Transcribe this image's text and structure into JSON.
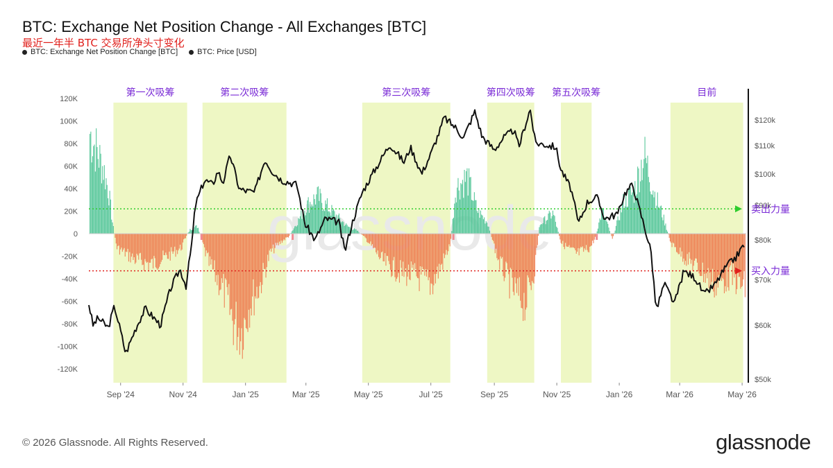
{
  "header": {
    "title": "BTC: Exchange Net Position Change - All Exchanges [BTC]",
    "subtitle": "最近一年半 BTC 交易所净头寸变化",
    "legend": [
      {
        "label": "BTC: Exchange Net Position Change [BTC]",
        "color": "#222222"
      },
      {
        "label": "BTC: Price [USD]",
        "color": "#111111"
      }
    ]
  },
  "footer": {
    "copyright": "© 2026 Glassnode. All Rights Reserved.",
    "brand": "glassnode",
    "watermark": "glassnode"
  },
  "colors": {
    "positive": "#4fc495",
    "negative": "#ee7c50",
    "negative_light": "#f08a92",
    "price": "#111111",
    "zone": "#eef7c4",
    "zone_label": "#7a2bd6",
    "sell_line": "#2ecc2e",
    "buy_line": "#e0201c",
    "annotation_text": "#7a2bd6"
  },
  "chart_data": {
    "type": "bar",
    "x_ticks": [
      "Sep '24",
      "Nov '24",
      "Jan '25",
      "Mar '25",
      "May '25",
      "Jul '25",
      "Sep '25",
      "Nov '25",
      "Jan '26",
      "Mar '26",
      "May '26"
    ],
    "x_range": [
      "2024-08-01",
      "2026-05-05"
    ],
    "y_left": {
      "ticks": [
        "120K",
        "100K",
        "80K",
        "60K",
        "40K",
        "20K",
        "0",
        "-20K",
        "-40K",
        "-60K",
        "-80K",
        "-100K",
        "-120K"
      ],
      "ylim": [
        -130000,
        127000
      ]
    },
    "y_right": {
      "ticks": [
        "$120k",
        "$110k",
        "$100k",
        "$90k",
        "$80k",
        "$70k",
        "$60k",
        "$50k"
      ],
      "ylim": [
        50000,
        127000
      ],
      "scale": "log"
    },
    "zones": [
      {
        "label": "第一次吸筹",
        "start": "2024-08-25",
        "end": "2024-11-05"
      },
      {
        "label": "第二次吸筹",
        "start": "2024-11-20",
        "end": "2025-02-10"
      },
      {
        "label": "第三次吸筹",
        "start": "2025-04-25",
        "end": "2025-07-20"
      },
      {
        "label": "第四次吸筹",
        "start": "2025-08-25",
        "end": "2025-10-10"
      },
      {
        "label": "第五次吸筹",
        "start": "2025-11-05",
        "end": "2025-12-05"
      },
      {
        "label": "目前",
        "start": "2026-02-20",
        "end": "2026-05-02"
      }
    ],
    "reference_lines": [
      {
        "label": "卖出力量",
        "value": 22000,
        "color": "#2ecc2e"
      },
      {
        "label": "买入力量",
        "value": -33000,
        "color": "#e0201c"
      }
    ],
    "series": [
      {
        "name": "BTC: Exchange Net Position Change [BTC]",
        "keyframes": [
          [
            "2024-08-01",
            110000
          ],
          [
            "2024-08-08",
            90000
          ],
          [
            "2024-08-15",
            70000
          ],
          [
            "2024-08-20",
            45000
          ],
          [
            "2024-08-24",
            10000
          ],
          [
            "2024-08-28",
            -15000
          ],
          [
            "2024-09-15",
            -28000
          ],
          [
            "2024-10-01",
            -33000
          ],
          [
            "2024-10-15",
            -25000
          ],
          [
            "2024-10-30",
            -15000
          ],
          [
            "2024-11-04",
            -2000
          ],
          [
            "2024-11-08",
            5000
          ],
          [
            "2024-11-15",
            8000
          ],
          [
            "2024-11-25",
            -30000
          ],
          [
            "2024-12-10",
            -60000
          ],
          [
            "2024-12-20",
            -95000
          ],
          [
            "2024-12-28",
            -105000
          ],
          [
            "2025-01-05",
            -75000
          ],
          [
            "2025-01-15",
            -55000
          ],
          [
            "2025-01-25",
            -20000
          ],
          [
            "2025-02-05",
            -8000
          ],
          [
            "2025-02-12",
            -3000
          ],
          [
            "2025-02-20",
            12000
          ],
          [
            "2025-03-01",
            30000
          ],
          [
            "2025-03-12",
            40000
          ],
          [
            "2025-03-25",
            25000
          ],
          [
            "2025-04-10",
            8000
          ],
          [
            "2025-04-20",
            3000
          ],
          [
            "2025-04-28",
            -5000
          ],
          [
            "2025-05-15",
            -30000
          ],
          [
            "2025-06-01",
            -42000
          ],
          [
            "2025-06-15",
            -45000
          ],
          [
            "2025-07-01",
            -55000
          ],
          [
            "2025-07-12",
            -32000
          ],
          [
            "2025-07-20",
            -10000
          ],
          [
            "2025-07-25",
            50000
          ],
          [
            "2025-08-05",
            60000
          ],
          [
            "2025-08-15",
            25000
          ],
          [
            "2025-08-25",
            12000
          ],
          [
            "2025-09-05",
            -30000
          ],
          [
            "2025-09-20",
            -62000
          ],
          [
            "2025-10-01",
            -75000
          ],
          [
            "2025-10-10",
            -38000
          ],
          [
            "2025-10-15",
            10000
          ],
          [
            "2025-10-28",
            22000
          ],
          [
            "2025-11-05",
            -10000
          ],
          [
            "2025-11-20",
            -22000
          ],
          [
            "2025-12-03",
            -15000
          ],
          [
            "2025-12-08",
            -5000
          ],
          [
            "2025-12-15",
            25000
          ],
          [
            "2025-12-25",
            -5000
          ],
          [
            "2026-01-05",
            35000
          ],
          [
            "2026-01-15",
            45000
          ],
          [
            "2026-01-25",
            85000
          ],
          [
            "2026-02-05",
            40000
          ],
          [
            "2026-02-12",
            20000
          ],
          [
            "2026-02-20",
            -10000
          ],
          [
            "2026-03-05",
            -25000
          ],
          [
            "2026-03-20",
            -38000
          ],
          [
            "2026-04-05",
            -55000
          ],
          [
            "2026-04-20",
            -45000
          ],
          [
            "2026-05-02",
            -58000
          ]
        ]
      },
      {
        "name": "BTC: Price [USD]",
        "keyframes": [
          [
            "2024-08-01",
            64500
          ],
          [
            "2024-08-05",
            60000
          ],
          [
            "2024-08-10",
            61500
          ],
          [
            "2024-08-20",
            59500
          ],
          [
            "2024-08-26",
            64000
          ],
          [
            "2024-09-06",
            54500
          ],
          [
            "2024-09-15",
            59000
          ],
          [
            "2024-09-25",
            63500
          ],
          [
            "2024-10-10",
            60000
          ],
          [
            "2024-10-20",
            68000
          ],
          [
            "2024-10-29",
            72500
          ],
          [
            "2024-11-04",
            68500
          ],
          [
            "2024-11-10",
            80000
          ],
          [
            "2024-11-13",
            90000
          ],
          [
            "2024-11-22",
            98000
          ],
          [
            "2024-11-30",
            96500
          ],
          [
            "2024-12-05",
            101000
          ],
          [
            "2024-12-10",
            97000
          ],
          [
            "2024-12-17",
            106500
          ],
          [
            "2024-12-26",
            95000
          ],
          [
            "2025-01-01",
            94500
          ],
          [
            "2025-01-10",
            94000
          ],
          [
            "2025-01-20",
            105000
          ],
          [
            "2025-01-27",
            101000
          ],
          [
            "2025-02-05",
            98000
          ],
          [
            "2025-02-20",
            96500
          ],
          [
            "2025-02-28",
            84500
          ],
          [
            "2025-03-10",
            80000
          ],
          [
            "2025-03-20",
            86000
          ],
          [
            "2025-04-02",
            85000
          ],
          [
            "2025-04-08",
            77000
          ],
          [
            "2025-04-15",
            84500
          ],
          [
            "2025-04-25",
            94000
          ],
          [
            "2025-05-10",
            103000
          ],
          [
            "2025-05-22",
            110500
          ],
          [
            "2025-06-05",
            104000
          ],
          [
            "2025-06-11",
            109500
          ],
          [
            "2025-06-22",
            100000
          ],
          [
            "2025-07-01",
            107000
          ],
          [
            "2025-07-10",
            116000
          ],
          [
            "2025-07-14",
            121000
          ],
          [
            "2025-07-25",
            117000
          ],
          [
            "2025-08-02",
            113000
          ],
          [
            "2025-08-13",
            123500
          ],
          [
            "2025-08-20",
            113500
          ],
          [
            "2025-09-01",
            108500
          ],
          [
            "2025-09-10",
            113000
          ],
          [
            "2025-09-20",
            116000
          ],
          [
            "2025-09-25",
            109500
          ],
          [
            "2025-10-06",
            124500
          ],
          [
            "2025-10-11",
            111000
          ],
          [
            "2025-10-20",
            110500
          ],
          [
            "2025-10-31",
            109500
          ],
          [
            "2025-11-05",
            101500
          ],
          [
            "2025-11-15",
            95000
          ],
          [
            "2025-11-22",
            84500
          ],
          [
            "2025-12-01",
            91000
          ],
          [
            "2025-12-10",
            92500
          ],
          [
            "2025-12-18",
            86000
          ],
          [
            "2025-12-31",
            87500
          ],
          [
            "2026-01-06",
            93500
          ],
          [
            "2026-01-14",
            96500
          ],
          [
            "2026-01-20",
            89500
          ],
          [
            "2026-02-01",
            77000
          ],
          [
            "2026-02-06",
            63000
          ],
          [
            "2026-02-14",
            69000
          ],
          [
            "2026-02-24",
            64500
          ],
          [
            "2026-03-05",
            72000
          ],
          [
            "2026-03-16",
            70500
          ],
          [
            "2026-03-25",
            66500
          ],
          [
            "2026-04-05",
            69000
          ],
          [
            "2026-04-15",
            73000
          ],
          [
            "2026-04-25",
            75500
          ],
          [
            "2026-05-02",
            78500
          ]
        ]
      }
    ]
  }
}
